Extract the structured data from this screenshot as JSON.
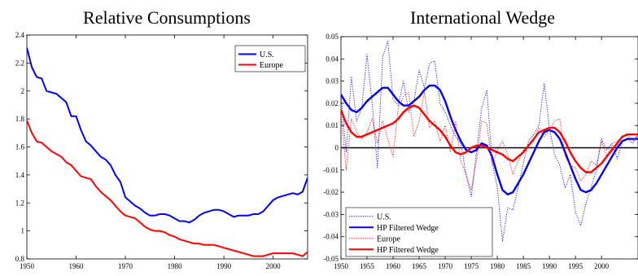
{
  "chart_data": [
    {
      "type": "line",
      "title": "Relative Consumptions",
      "xlabel": "",
      "ylabel": "",
      "xlim": [
        1950,
        2007
      ],
      "ylim": [
        0.8,
        2.4
      ],
      "xticks": [
        "1950",
        "1960",
        "1970",
        "1980",
        "1990",
        "2000"
      ],
      "yticks": [
        "0.8",
        "1",
        "1.2",
        "1.4",
        "1.6",
        "1.8",
        "2",
        "2.2",
        "2.4"
      ],
      "legend_position": "top-right",
      "grid": false,
      "series": [
        {
          "name": "U.S.",
          "color": "#0000ff",
          "x": [
            1950,
            1951,
            1952,
            1953,
            1954,
            1955,
            1956,
            1957,
            1958,
            1959,
            1960,
            1961,
            1962,
            1963,
            1964,
            1965,
            1966,
            1967,
            1968,
            1969,
            1970,
            1971,
            1972,
            1973,
            1974,
            1975,
            1976,
            1977,
            1978,
            1979,
            1980,
            1981,
            1982,
            1983,
            1984,
            1985,
            1986,
            1987,
            1988,
            1989,
            1990,
            1991,
            1992,
            1993,
            1994,
            1995,
            1996,
            1997,
            1998,
            1999,
            2000,
            2001,
            2002,
            2003,
            2004,
            2005,
            2006,
            2007
          ],
          "y": [
            2.31,
            2.17,
            2.1,
            2.09,
            2.0,
            1.99,
            1.98,
            1.95,
            1.92,
            1.82,
            1.82,
            1.72,
            1.64,
            1.61,
            1.57,
            1.53,
            1.51,
            1.47,
            1.4,
            1.35,
            1.24,
            1.21,
            1.18,
            1.16,
            1.13,
            1.11,
            1.11,
            1.12,
            1.12,
            1.11,
            1.09,
            1.07,
            1.07,
            1.06,
            1.08,
            1.11,
            1.13,
            1.14,
            1.15,
            1.15,
            1.14,
            1.12,
            1.1,
            1.11,
            1.11,
            1.11,
            1.12,
            1.12,
            1.14,
            1.18,
            1.22,
            1.24,
            1.25,
            1.26,
            1.27,
            1.26,
            1.28,
            1.38
          ]
        },
        {
          "name": "Europe",
          "color": "#ff0000",
          "x": [
            1950,
            1951,
            1952,
            1953,
            1954,
            1955,
            1956,
            1957,
            1958,
            1959,
            1960,
            1961,
            1962,
            1963,
            1964,
            1965,
            1966,
            1967,
            1968,
            1969,
            1970,
            1971,
            1972,
            1973,
            1974,
            1975,
            1976,
            1977,
            1978,
            1979,
            1980,
            1981,
            1982,
            1983,
            1984,
            1985,
            1986,
            1987,
            1988,
            1989,
            1990,
            1991,
            1992,
            1993,
            1994,
            1995,
            1996,
            1997,
            1998,
            1999,
            2000,
            2001,
            2002,
            2003,
            2004,
            2005,
            2006,
            2007
          ],
          "y": [
            1.79,
            1.7,
            1.64,
            1.63,
            1.6,
            1.57,
            1.55,
            1.53,
            1.49,
            1.47,
            1.43,
            1.39,
            1.38,
            1.37,
            1.32,
            1.28,
            1.25,
            1.22,
            1.18,
            1.14,
            1.11,
            1.1,
            1.09,
            1.06,
            1.03,
            1.01,
            1.0,
            1.0,
            0.99,
            0.97,
            0.96,
            0.94,
            0.93,
            0.92,
            0.91,
            0.91,
            0.9,
            0.9,
            0.9,
            0.89,
            0.88,
            0.87,
            0.86,
            0.85,
            0.84,
            0.83,
            0.82,
            0.82,
            0.82,
            0.83,
            0.84,
            0.84,
            0.84,
            0.84,
            0.84,
            0.83,
            0.82,
            0.85
          ]
        }
      ]
    },
    {
      "type": "line",
      "title": "International Wedge",
      "xlabel": "",
      "ylabel": "",
      "xlim": [
        1950,
        2007
      ],
      "ylim": [
        -0.05,
        0.05
      ],
      "xticks": [
        "1950",
        "1955",
        "1960",
        "1965",
        "1970",
        "1975",
        "1980",
        "1985",
        "1990",
        "1995",
        "2000"
      ],
      "yticks": [
        "-0.05",
        "-0.04",
        "-0.03",
        "-0.02",
        "-0.01",
        "0",
        "0.01",
        "0.02",
        "0.03",
        "0.04",
        "0.05"
      ],
      "zero_line": true,
      "legend_position": "bottom-left",
      "grid": false,
      "series": [
        {
          "name": "U.S.",
          "color": "#0000ff",
          "style": "dotted",
          "x": [
            1950,
            1951,
            1952,
            1953,
            1954,
            1955,
            1956,
            1957,
            1958,
            1959,
            1960,
            1961,
            1962,
            1963,
            1964,
            1965,
            1966,
            1967,
            1968,
            1969,
            1970,
            1971,
            1972,
            1973,
            1974,
            1975,
            1976,
            1977,
            1978,
            1979,
            1980,
            1981,
            1982,
            1983,
            1984,
            1985,
            1986,
            1987,
            1988,
            1989,
            1990,
            1991,
            1992,
            1993,
            1994,
            1995,
            1996,
            1997,
            1998,
            1999,
            2000,
            2001,
            2002,
            2003,
            2004,
            2005,
            2006,
            2007
          ],
          "y": [
            0.024,
            -0.002,
            0.032,
            0.012,
            0.018,
            0.042,
            0.02,
            -0.009,
            0.041,
            0.048,
            0.022,
            0.019,
            0.03,
            0.016,
            0.021,
            0.035,
            0.027,
            0.038,
            0.039,
            0.02,
            0.016,
            0.01,
            0.005,
            0.002,
            -0.012,
            -0.022,
            -0.002,
            0.018,
            0.026,
            -0.006,
            -0.018,
            -0.042,
            -0.027,
            -0.028,
            -0.018,
            -0.007,
            0.003,
            0.006,
            0.01,
            0.029,
            0.009,
            -0.003,
            -0.008,
            -0.018,
            -0.012,
            -0.029,
            -0.035,
            -0.025,
            -0.018,
            -0.01,
            0.004,
            -0.001,
            0.002,
            -0.005,
            0.003,
            0.004,
            0.002,
            0.006
          ]
        },
        {
          "name": "HP Filtered Wedge",
          "color": "#0000ff",
          "style": "solid",
          "x": [
            1950,
            1951,
            1952,
            1953,
            1954,
            1955,
            1956,
            1957,
            1958,
            1959,
            1960,
            1961,
            1962,
            1963,
            1964,
            1965,
            1966,
            1967,
            1968,
            1969,
            1970,
            1971,
            1972,
            1973,
            1974,
            1975,
            1976,
            1977,
            1978,
            1979,
            1980,
            1981,
            1982,
            1983,
            1984,
            1985,
            1986,
            1987,
            1988,
            1989,
            1990,
            1991,
            1992,
            1993,
            1994,
            1995,
            1996,
            1997,
            1998,
            1999,
            2000,
            2001,
            2002,
            2003,
            2004,
            2005,
            2006,
            2007
          ],
          "y": [
            0.024,
            0.02,
            0.017,
            0.016,
            0.018,
            0.021,
            0.023,
            0.025,
            0.027,
            0.027,
            0.024,
            0.021,
            0.019,
            0.019,
            0.021,
            0.023,
            0.026,
            0.028,
            0.028,
            0.026,
            0.021,
            0.014,
            0.008,
            0.003,
            -0.001,
            -0.002,
            -0.001,
            0.002,
            0.001,
            -0.004,
            -0.012,
            -0.019,
            -0.021,
            -0.02,
            -0.016,
            -0.012,
            -0.007,
            -0.002,
            0.003,
            0.007,
            0.008,
            0.007,
            0.004,
            -0.002,
            -0.008,
            -0.014,
            -0.019,
            -0.02,
            -0.019,
            -0.016,
            -0.012,
            -0.008,
            -0.004,
            0.0,
            0.003,
            0.004,
            0.004,
            0.004
          ]
        },
        {
          "name": "Europe",
          "color": "#ff0000",
          "style": "dotted",
          "x": [
            1950,
            1951,
            1952,
            1953,
            1954,
            1955,
            1956,
            1957,
            1958,
            1959,
            1960,
            1961,
            1962,
            1963,
            1964,
            1965,
            1966,
            1967,
            1968,
            1969,
            1970,
            1971,
            1972,
            1973,
            1974,
            1975,
            1976,
            1977,
            1978,
            1979,
            1980,
            1981,
            1982,
            1983,
            1984,
            1985,
            1986,
            1987,
            1988,
            1989,
            1990,
            1991,
            1992,
            1993,
            1994,
            1995,
            1996,
            1997,
            1998,
            1999,
            2000,
            2001,
            2002,
            2003,
            2004,
            2005,
            2006,
            2007
          ],
          "y": [
            0.016,
            -0.01,
            0.013,
            0.007,
            0.004,
            0.007,
            0.013,
            0.002,
            0.012,
            0.004,
            -0.004,
            0.018,
            0.023,
            0.025,
            0.005,
            0.012,
            0.025,
            0.009,
            0.012,
            0.003,
            0.01,
            -0.002,
            0.012,
            -0.006,
            -0.012,
            -0.019,
            -0.006,
            0.012,
            0.011,
            -0.008,
            -0.001,
            0.003,
            -0.003,
            -0.012,
            -0.006,
            -0.001,
            0.001,
            0.003,
            0.009,
            0.005,
            0.008,
            0.012,
            0.013,
            -0.004,
            -0.008,
            -0.009,
            -0.015,
            -0.012,
            -0.006,
            -0.008,
            0.003,
            -0.004,
            0.002,
            0.003,
            0.005,
            0.006,
            0.003,
            0.006
          ]
        },
        {
          "name": "HP Filtered Wedge",
          "color": "#ff0000",
          "style": "solid",
          "x": [
            1950,
            1951,
            1952,
            1953,
            1954,
            1955,
            1956,
            1957,
            1958,
            1959,
            1960,
            1961,
            1962,
            1963,
            1964,
            1965,
            1966,
            1967,
            1968,
            1969,
            1970,
            1971,
            1972,
            1973,
            1974,
            1975,
            1976,
            1977,
            1978,
            1979,
            1980,
            1981,
            1982,
            1983,
            1984,
            1985,
            1986,
            1987,
            1988,
            1989,
            1990,
            1991,
            1992,
            1993,
            1994,
            1995,
            1996,
            1997,
            1998,
            1999,
            2000,
            2001,
            2002,
            2003,
            2004,
            2005,
            2006,
            2007
          ],
          "y": [
            0.017,
            0.011,
            0.007,
            0.005,
            0.005,
            0.006,
            0.007,
            0.008,
            0.009,
            0.01,
            0.011,
            0.013,
            0.016,
            0.018,
            0.019,
            0.018,
            0.015,
            0.012,
            0.01,
            0.008,
            0.005,
            0.001,
            -0.002,
            -0.003,
            -0.002,
            0.0,
            0.001,
            0.001,
            0.0,
            -0.001,
            -0.002,
            -0.003,
            -0.005,
            -0.006,
            -0.004,
            -0.002,
            0.001,
            0.004,
            0.007,
            0.008,
            0.009,
            0.009,
            0.007,
            0.003,
            -0.002,
            -0.006,
            -0.009,
            -0.011,
            -0.011,
            -0.009,
            -0.007,
            -0.004,
            -0.001,
            0.002,
            0.005,
            0.006,
            0.006,
            0.006
          ]
        }
      ]
    }
  ]
}
